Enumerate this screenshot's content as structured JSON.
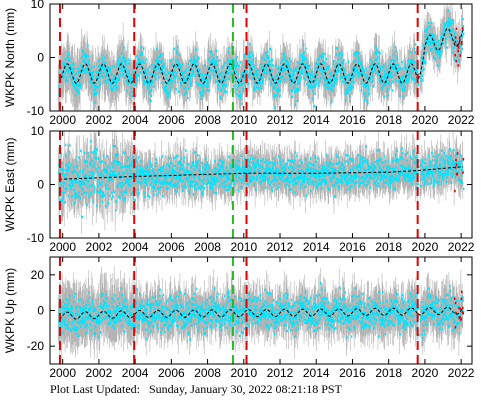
{
  "footer": {
    "label": "Plot Last Updated:",
    "timestamp": "Sunday, January 30, 2022 08:21:18 PST"
  },
  "colors": {
    "errorbar": "#b4b4b4",
    "data": "#00e5ff",
    "recent": "#e60000",
    "model": "#000000",
    "offset_line": "#e60000",
    "quake_line": "#22bb22"
  },
  "chart_data": [
    {
      "type": "scatter",
      "ylabel": "WKPK North (mm)",
      "xlim": [
        1999.3,
        2022.6
      ],
      "ylim": [
        -10,
        10
      ],
      "yticks": [
        -10,
        0,
        10
      ],
      "xticks": [
        2000,
        2002,
        2004,
        2006,
        2008,
        2010,
        2012,
        2014,
        2016,
        2018,
        2020,
        2022
      ],
      "offset_lines": [
        1999.85,
        2003.95,
        2010.15,
        2019.6
      ],
      "quake_lines": [
        2009.4
      ],
      "series": [
        {
          "values_x": [
            2000,
            2002,
            2004,
            2006,
            2008,
            2010,
            2012,
            2014,
            2016,
            2018,
            2019.6,
            2020,
            2021,
            2022
          ],
          "values": [
            -3,
            -3,
            -3,
            -3,
            -3,
            -3,
            -3,
            -3,
            -3,
            -3,
            -3,
            2,
            3.5,
            4
          ]
        }
      ]
    },
    {
      "type": "scatter",
      "ylabel": "WKPK East (mm)",
      "xlim": [
        1999.3,
        2022.6
      ],
      "ylim": [
        -10,
        10
      ],
      "yticks": [
        -10,
        0,
        10
      ],
      "xticks": [
        2000,
        2002,
        2004,
        2006,
        2008,
        2010,
        2012,
        2014,
        2016,
        2018,
        2020,
        2022
      ],
      "offset_lines": [
        1999.85,
        2003.95,
        2010.15,
        2019.6
      ],
      "quake_lines": [
        2009.4
      ],
      "series": [
        {
          "values_x": [
            2000,
            2004,
            2008,
            2010,
            2014,
            2018,
            2019.6,
            2022
          ],
          "values": [
            1,
            1.5,
            1.9,
            2.1,
            2.1,
            2.3,
            2.6,
            3.3
          ]
        }
      ]
    },
    {
      "type": "scatter",
      "ylabel": "WKPK Up (mm)",
      "xlim": [
        1999.3,
        2022.6
      ],
      "ylim": [
        -30,
        30
      ],
      "yticks": [
        -20,
        0,
        20
      ],
      "xticks": [
        2000,
        2002,
        2004,
        2006,
        2008,
        2010,
        2012,
        2014,
        2016,
        2018,
        2020,
        2022
      ],
      "offset_lines": [
        1999.85,
        2003.95,
        2010.15,
        2019.6
      ],
      "quake_lines": [
        2009.4
      ],
      "series": [
        {
          "values_x": [
            2000,
            2004,
            2010,
            2016,
            2019.6,
            2022
          ],
          "values": [
            -3,
            -2,
            -1.5,
            -1,
            -0.5,
            0
          ]
        }
      ]
    }
  ]
}
